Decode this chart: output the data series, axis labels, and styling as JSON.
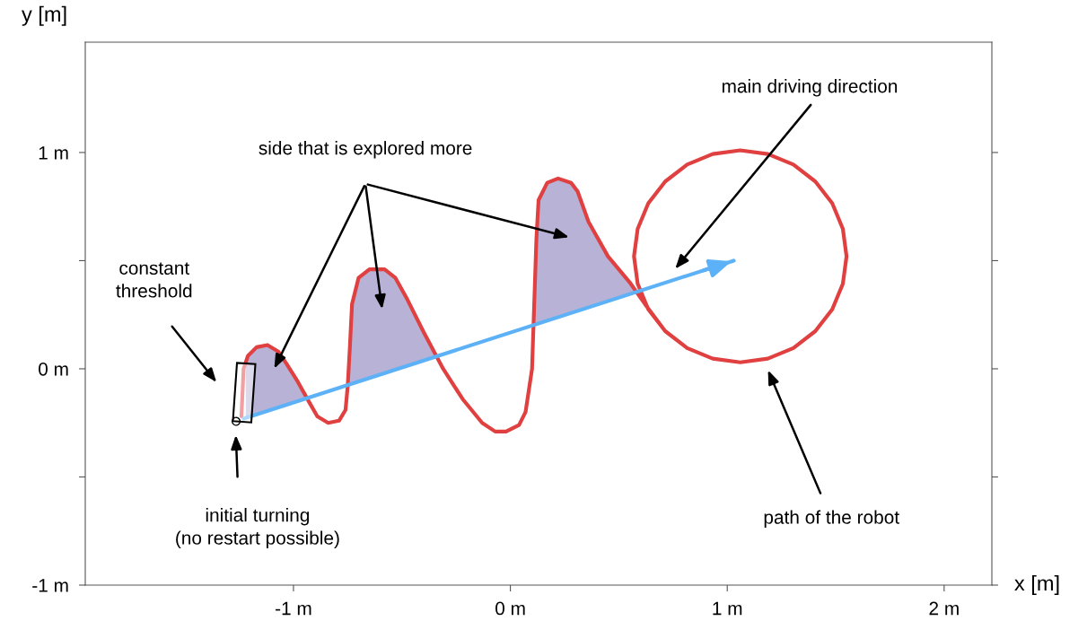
{
  "chart_data": {
    "type": "line",
    "xlabel": "x [m]",
    "ylabel": "y [m]",
    "xlim": [
      -1.96,
      2.22
    ],
    "ylim": [
      -1.0,
      1.51
    ],
    "xticks": [
      {
        "value": -1,
        "label": "-1 m"
      },
      {
        "value": 0,
        "label": "0 m"
      },
      {
        "value": 1,
        "label": "1 m"
      },
      {
        "value": 2,
        "label": "2 m"
      }
    ],
    "yticks": [
      {
        "value": -1,
        "label": "-1 m"
      },
      {
        "value": -0.5,
        "label": null
      },
      {
        "value": 0,
        "label": "0 m"
      },
      {
        "value": 0.5,
        "label": null
      },
      {
        "value": 1,
        "label": "1 m"
      }
    ],
    "grid": false,
    "series": [
      {
        "type": "area",
        "color": "#b8b2d6",
        "x": [
          -1.22,
          -1.22,
          -1.17,
          -1.12,
          -1.07,
          -1.03,
          -0.98,
          -0.94
        ],
        "values": [
          -0.227,
          0.04,
          0.1,
          0.11,
          0.08,
          0.02,
          -0.06,
          -0.136
        ]
      },
      {
        "type": "area",
        "color": "#b8b2d6",
        "x": [
          -0.745,
          -0.74,
          -0.73,
          -0.7,
          -0.65,
          -0.58,
          -0.53,
          -0.48,
          -0.4,
          -0.341
        ],
        "values": [
          -0.073,
          0.1,
          0.3,
          0.42,
          0.46,
          0.46,
          0.42,
          0.33,
          0.17,
          0.058
        ]
      },
      {
        "type": "area",
        "color": "#b8b2d6",
        "x": [
          0.107,
          0.11,
          0.12,
          0.13,
          0.17,
          0.22,
          0.28,
          0.31,
          0.36,
          0.45,
          0.55,
          0.5785
        ],
        "values": [
          0.205,
          0.3,
          0.6,
          0.78,
          0.86,
          0.88,
          0.86,
          0.82,
          0.68,
          0.52,
          0.4,
          0.359
        ]
      },
      {
        "color": "#e04040",
        "x": [
          -1.24,
          -1.23,
          -1.21,
          -1.17,
          -1.12,
          -1.07,
          -1.03,
          -0.98,
          -0.93,
          -0.89,
          -0.84,
          -0.79,
          -0.76,
          -0.75,
          -0.74,
          -0.73,
          -0.7,
          -0.65,
          -0.58,
          -0.53,
          -0.48,
          -0.4,
          -0.31,
          -0.22,
          -0.13,
          -0.07,
          -0.02,
          0.04,
          0.07,
          0.1,
          0.11,
          0.12,
          0.13,
          0.17,
          0.22,
          0.28,
          0.31,
          0.36,
          0.45,
          0.55,
          0.62,
          0.714,
          0.815,
          0.933,
          1.06,
          1.187,
          1.305,
          1.406,
          1.484,
          1.533,
          1.55,
          1.533,
          1.484,
          1.406,
          1.305,
          1.187,
          1.06,
          0.933,
          0.815,
          0.714,
          0.636,
          0.587,
          0.57,
          0.587,
          0.636,
          0.714,
          0.815,
          0.933,
          1.06
        ],
        "values": [
          -0.22,
          0.0,
          0.06,
          0.1,
          0.11,
          0.08,
          0.02,
          -0.06,
          -0.15,
          -0.22,
          -0.25,
          -0.24,
          -0.19,
          -0.08,
          0.1,
          0.3,
          0.42,
          0.46,
          0.46,
          0.42,
          0.33,
          0.17,
          0.0,
          -0.14,
          -0.25,
          -0.29,
          -0.29,
          -0.26,
          -0.2,
          0.0,
          0.3,
          0.6,
          0.78,
          0.86,
          0.88,
          0.86,
          0.82,
          0.68,
          0.52,
          0.4,
          0.3,
          0.174,
          0.096,
          0.047,
          0.03,
          0.047,
          0.096,
          0.174,
          0.275,
          0.393,
          0.52,
          0.647,
          0.765,
          0.866,
          0.944,
          0.993,
          1.01,
          0.993,
          0.944,
          0.866,
          0.765,
          0.647,
          0.52,
          0.393,
          0.275,
          0.174,
          0.096,
          0.047,
          0.03
        ]
      },
      {
        "color": "#5cb1f7",
        "x": [
          -1.23,
          1.03
        ],
        "values": [
          -0.23,
          0.5
        ]
      }
    ],
    "annotations": [
      "side that is explored more",
      "main driving direction",
      "path of the robot",
      "constant\nthreshold",
      "initial turning\n(no restart possible)"
    ]
  }
}
